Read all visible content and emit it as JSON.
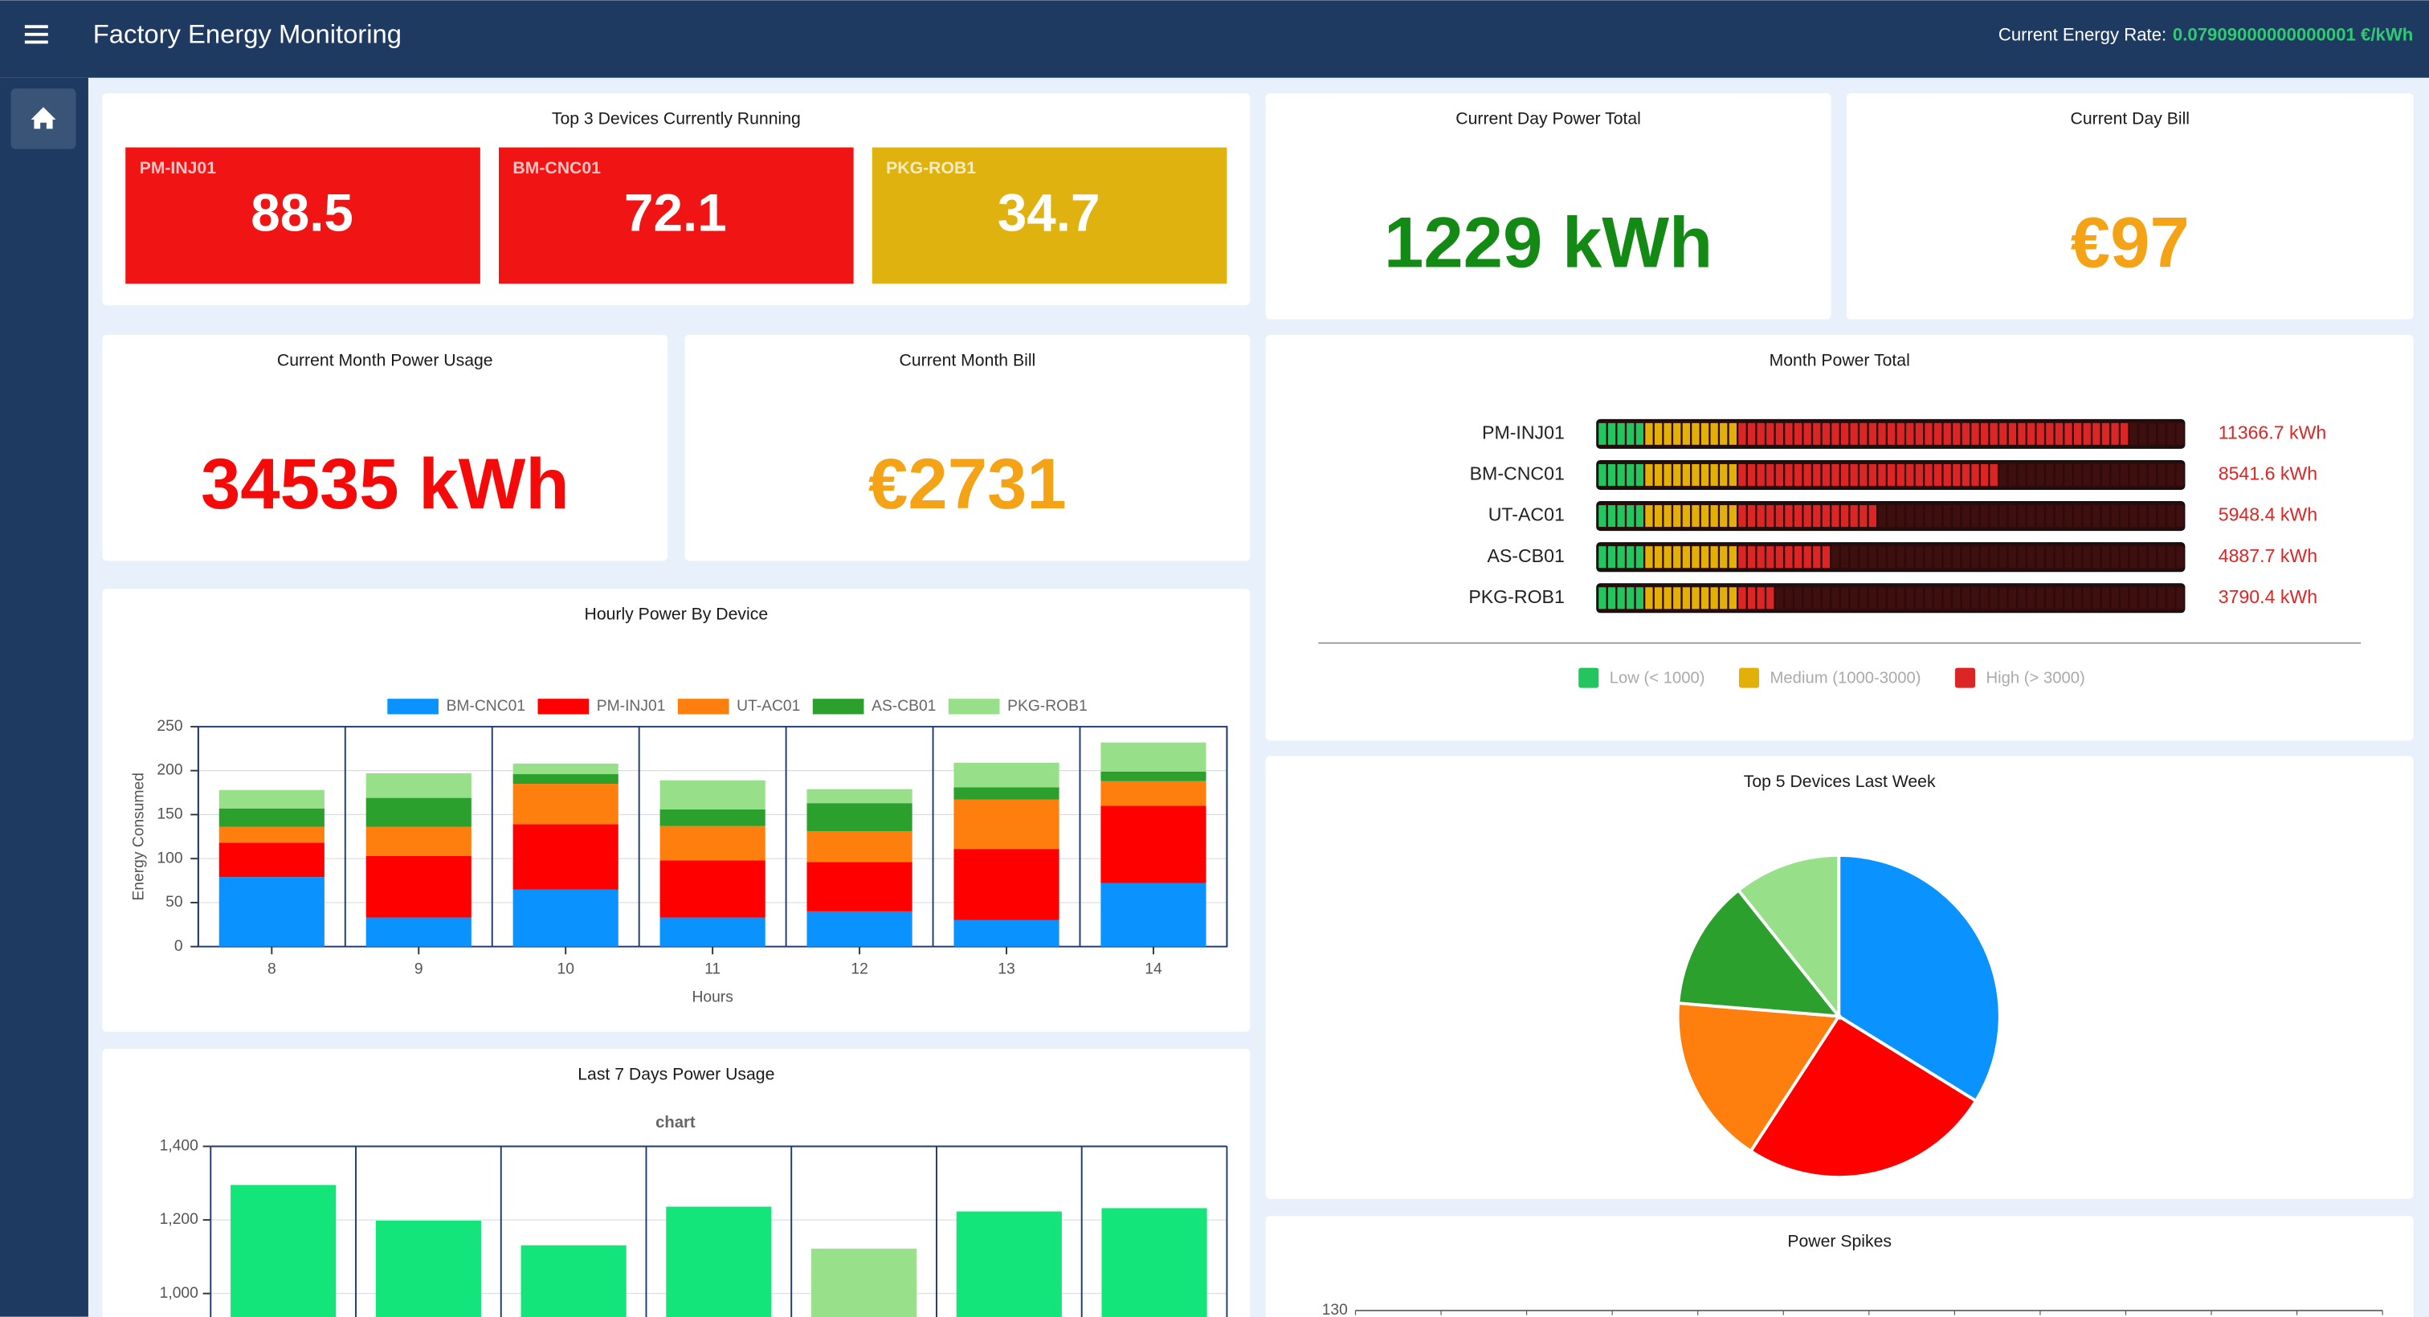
{
  "header": {
    "title": "Factory Energy Monitoring",
    "rate_label": "Current Energy Rate:",
    "rate_value": "0.07909000000000001 €/kWh"
  },
  "top_devices": {
    "title": "Top 3 Devices Currently Running",
    "devices": [
      {
        "name": "PM-INJ01",
        "value": 88.5,
        "color": "#f01414"
      },
      {
        "name": "BM-CNC01",
        "value": 72.1,
        "color": "#f01414"
      },
      {
        "name": "PKG-ROB1",
        "value": 34.7,
        "color": "#dfb20f"
      }
    ]
  },
  "day_power": {
    "title": "Current Day Power Total",
    "value": "1229 kWh",
    "color": "#138a13"
  },
  "day_bill": {
    "title": "Current Day Bill",
    "value": "€97",
    "color": "#f5a316"
  },
  "month_usage": {
    "title": "Current Month Power Usage",
    "value": "34535 kWh",
    "color": "#f50a0a"
  },
  "month_bill": {
    "title": "Current Month Bill",
    "value": "€2731",
    "color": "#f5a316"
  },
  "month_power_total": {
    "title": "Month Power Total",
    "chart_data": {
      "type": "segmented-bar",
      "categories": [
        "PM-INJ01",
        "BM-CNC01",
        "UT-AC01",
        "AS-CB01",
        "PKG-ROB1"
      ],
      "values": [
        11366.7,
        8541.6,
        5948.4,
        4887.7,
        3790.4
      ],
      "value_labels": [
        "11366.7 kWh",
        "8541.6 kWh",
        "5948.4 kWh",
        "4887.7 kWh",
        "3790.4 kWh"
      ],
      "xlim": [
        0,
        12600
      ],
      "levels": [
        {
          "label": "Low (< 1000)",
          "max": 1000,
          "color": "#22c55e"
        },
        {
          "label": "Medium (1000-3000)",
          "max": 3000,
          "color": "#e2b007"
        },
        {
          "label": "High (> 3000)",
          "color": "#dc2626"
        }
      ]
    }
  },
  "hourly": {
    "title": "Hourly Power By Device",
    "chart_data": {
      "type": "stacked-bar",
      "categories": [
        "8",
        "9",
        "10",
        "11",
        "12",
        "13",
        "14"
      ],
      "x_label": "Hours",
      "y_label": "Energy Consumed",
      "ylim": [
        0,
        250
      ],
      "yticks": [
        0,
        50,
        100,
        150,
        200,
        250
      ],
      "series": [
        {
          "name": "BM-CNC01",
          "color": "#0a93ff",
          "values": [
            79,
            33,
            65,
            33,
            40,
            30,
            72
          ]
        },
        {
          "name": "PM-INJ01",
          "color": "#ff0000",
          "values": [
            39,
            70,
            74,
            65,
            56,
            81,
            88
          ]
        },
        {
          "name": "UT-AC01",
          "color": "#ff7f0e",
          "values": [
            18,
            33,
            46,
            39,
            35,
            56,
            28
          ]
        },
        {
          "name": "AS-CB01",
          "color": "#2ca02c",
          "values": [
            21,
            33,
            11,
            19,
            32,
            14,
            11
          ]
        },
        {
          "name": "PKG-ROB1",
          "color": "#98df8a",
          "values": [
            21,
            28,
            12,
            33,
            16,
            28,
            33
          ]
        }
      ]
    }
  },
  "last7": {
    "title": "Last 7 Days Power Usage",
    "chart_data": {
      "type": "bar",
      "title": "chart",
      "categories": [
        null,
        null,
        null,
        null,
        null,
        null,
        null
      ],
      "values": [
        1295,
        1198,
        1131,
        1236,
        1122,
        1223,
        1232
      ],
      "colors": [
        "#14e57a",
        "#14e57a",
        "#14e57a",
        "#14e57a",
        "#98e08a",
        "#14e57a",
        "#14e57a"
      ],
      "ylim": [
        800,
        1400
      ],
      "yticks": [
        {
          "value": 1000,
          "label": "1,000"
        },
        {
          "value": 1200,
          "label": "1,200"
        },
        {
          "value": 1400,
          "label": "1,400"
        }
      ]
    }
  },
  "top5": {
    "title": "Top 5 Devices Last Week",
    "chart_data": {
      "type": "pie",
      "values": [
        33.8,
        25.4,
        17.1,
        13.0,
        10.7
      ],
      "colors": [
        "#0a93ff",
        "#ff0000",
        "#ff7f0e",
        "#2ca02c",
        "#98df8a"
      ]
    }
  },
  "spikes": {
    "title": "Power Spikes",
    "chart_data": {
      "type": "line",
      "ylim": [
        70,
        130
      ],
      "yticks": [
        130
      ]
    }
  }
}
